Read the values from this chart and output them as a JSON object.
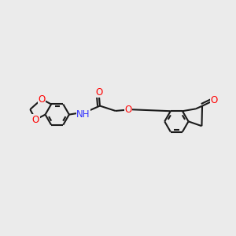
{
  "background_color": "#EBEBEB",
  "line_color": "#1a1a1a",
  "bond_lw": 1.5,
  "atom_colors": {
    "O": "#FF0000",
    "N": "#3333FF",
    "C": "#1a1a1a"
  },
  "font_size": 8.5,
  "fig_width": 3.0,
  "fig_height": 3.0,
  "dpi": 100
}
